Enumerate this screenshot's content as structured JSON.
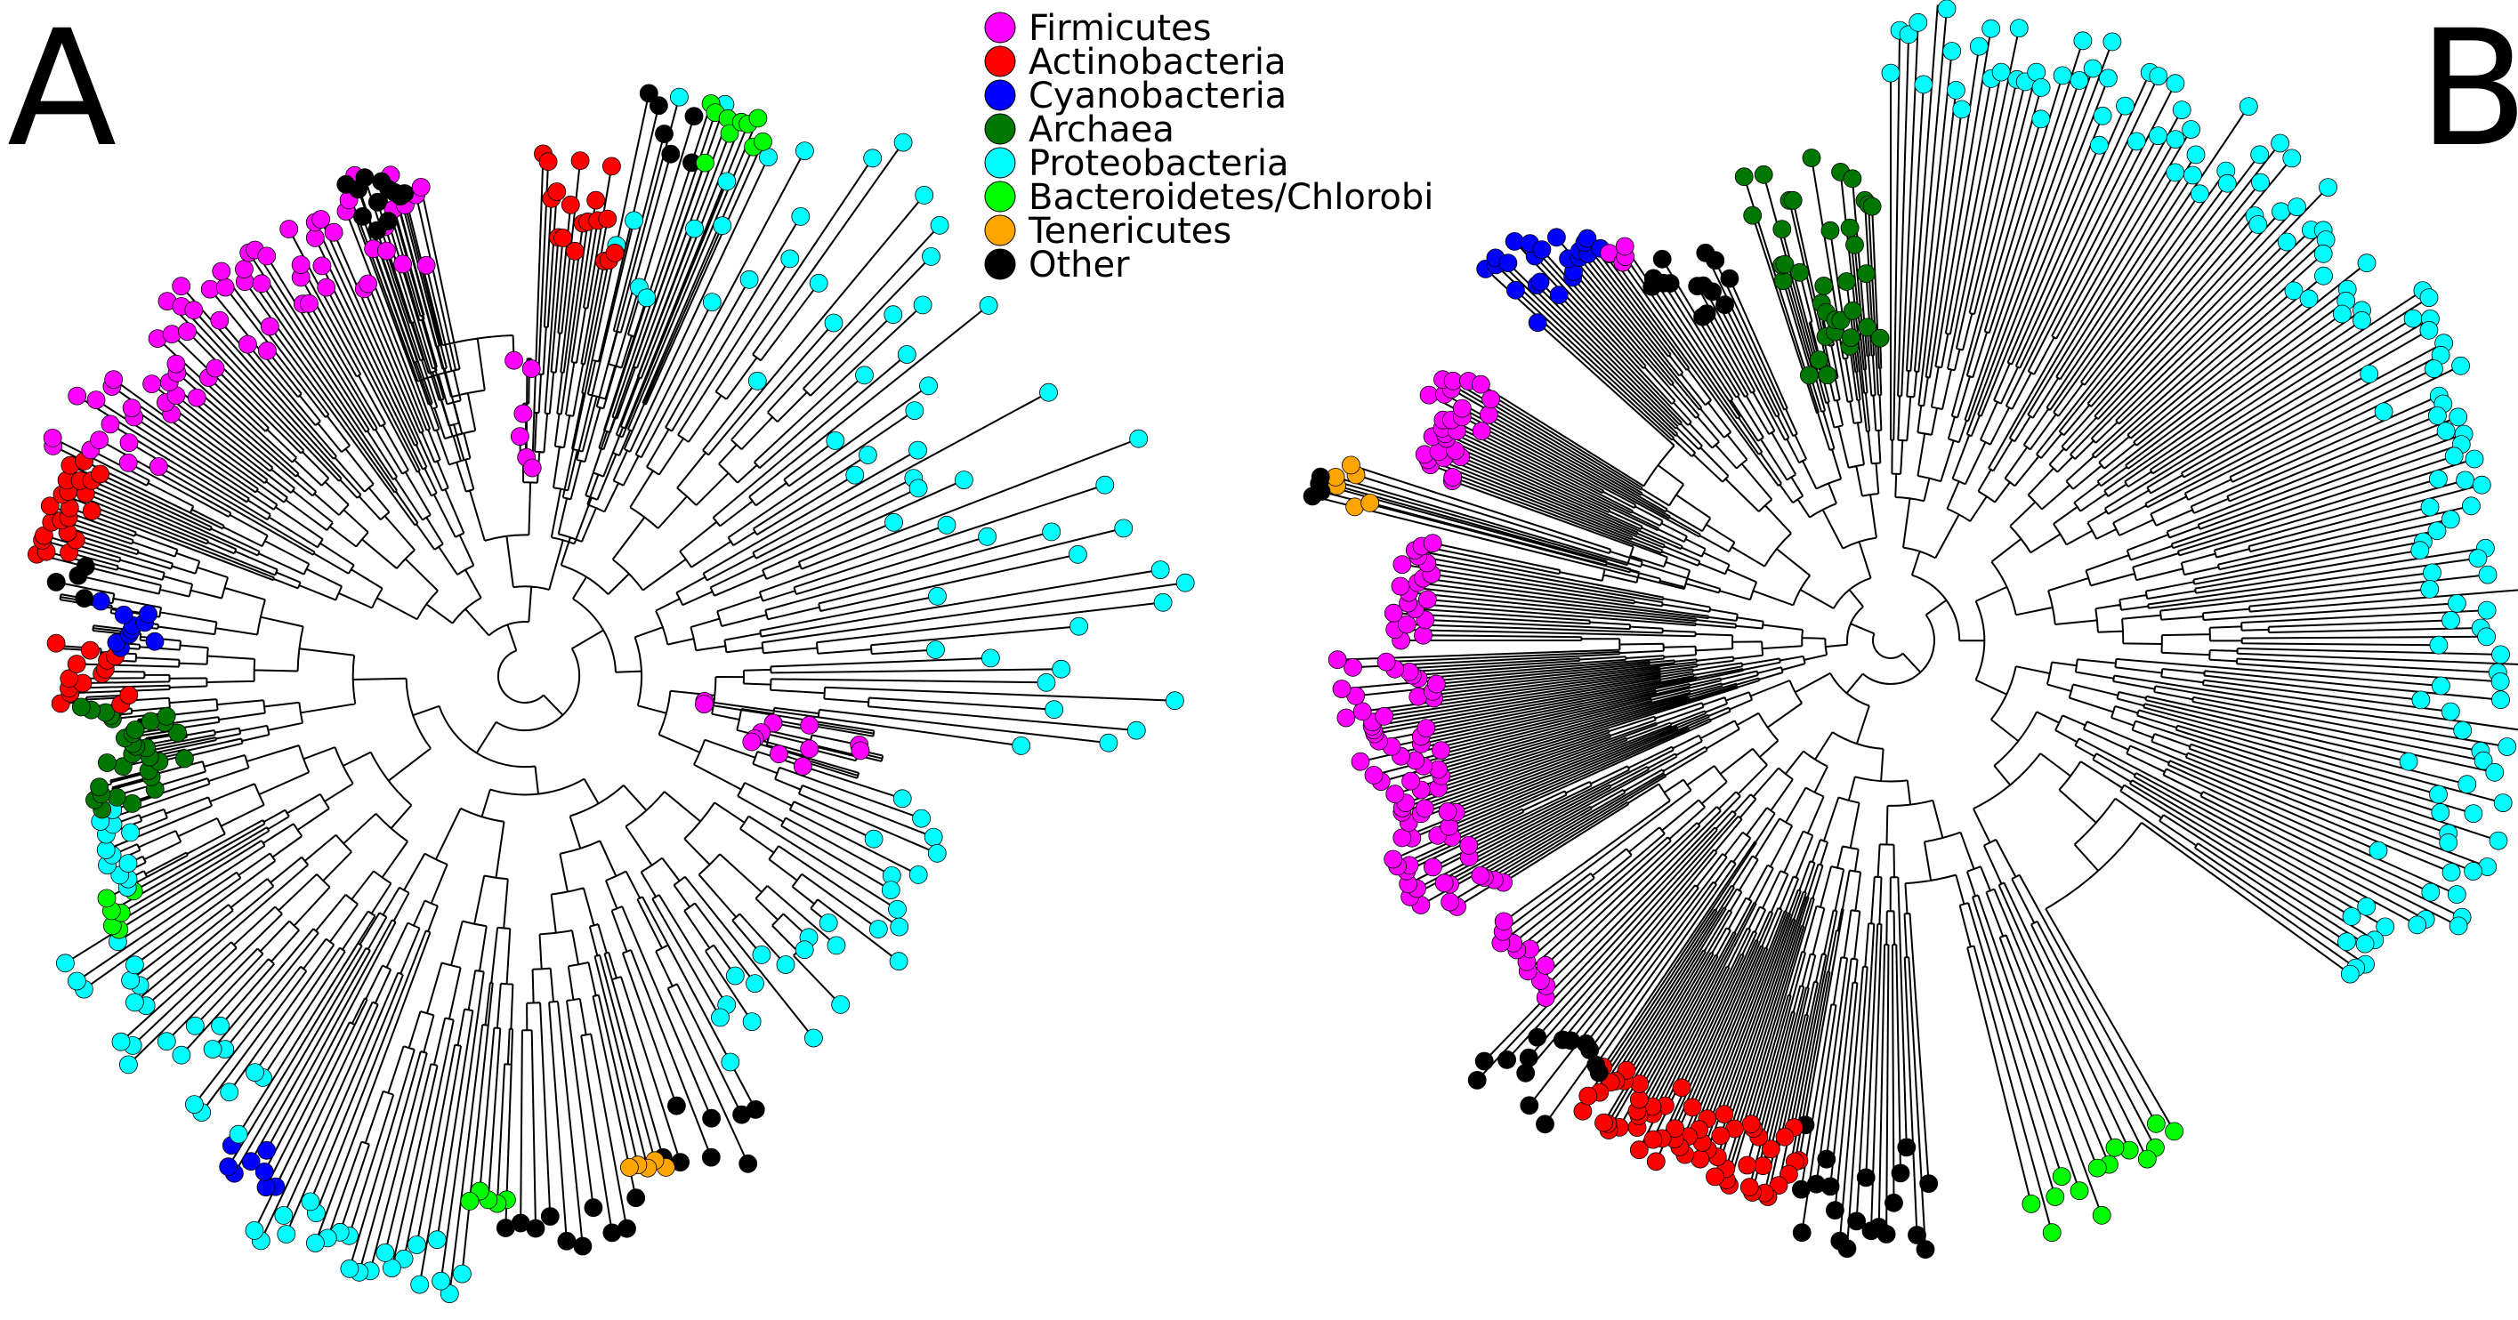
{
  "panels": [
    {
      "label": "A",
      "layout": "circular"
    },
    {
      "label": "B",
      "layout": "circular"
    }
  ],
  "legend": {
    "placement": "top-center",
    "entries": [
      {
        "name": "Firmicutes",
        "color": "#ff00ff"
      },
      {
        "name": "Actinobacteria",
        "color": "#ff0000"
      },
      {
        "name": "Cyanobacteria",
        "color": "#0000ff"
      },
      {
        "name": "Archaea",
        "color": "#007700"
      },
      {
        "name": "Proteobacteria",
        "color": "#00ffff"
      },
      {
        "name": "Bacteroidetes/Chlorobi",
        "color": "#00ff00"
      },
      {
        "name": "Tenericutes",
        "color": "#ffa500"
      },
      {
        "name": "Other",
        "color": "#000000"
      }
    ]
  }
}
